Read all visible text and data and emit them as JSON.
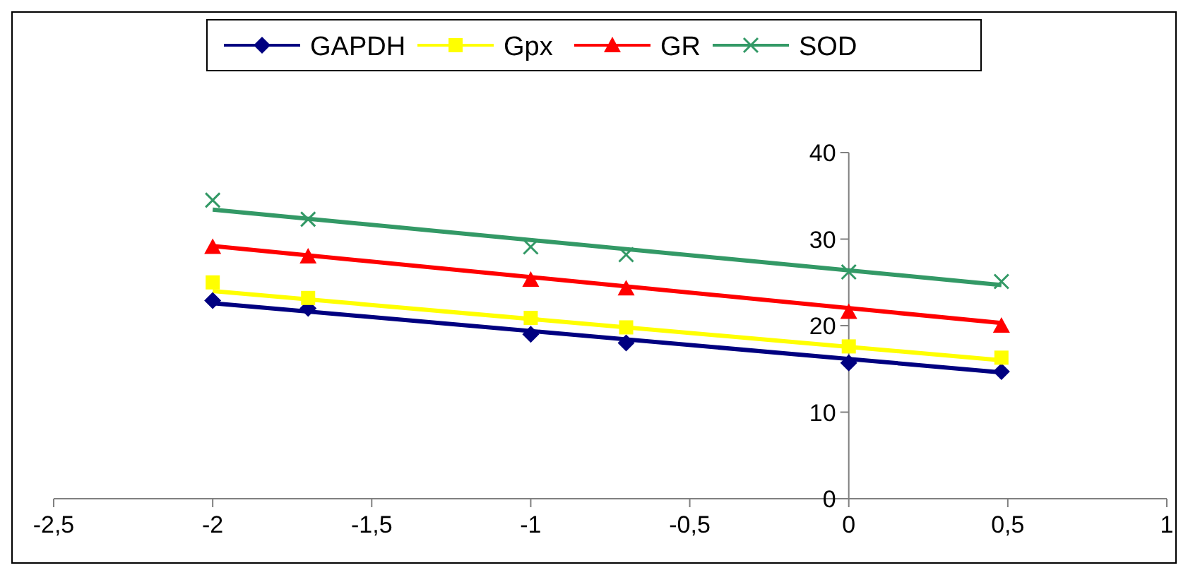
{
  "chart_data": {
    "type": "scatter",
    "xlim": [
      -2.5,
      1
    ],
    "ylim": [
      0,
      40
    ],
    "xticks": [
      {
        "value": -2.5,
        "label": "-2,5"
      },
      -2,
      {
        "value": -1.5,
        "label": "-1,5"
      },
      -1,
      {
        "value": -0.5,
        "label": "-0,5"
      },
      0,
      {
        "value": 0.5,
        "label": "0,5"
      },
      1
    ],
    "yticks": [
      0,
      10,
      20,
      30,
      40
    ],
    "grid": false,
    "legend": "top",
    "series": [
      {
        "name": "GAPDH",
        "color": "#000080",
        "marker": "diamond",
        "x": [
          -2,
          -1.7,
          -1,
          -0.7,
          0,
          0.48
        ],
        "values": [
          22.9,
          22.0,
          19.0,
          18.0,
          15.7,
          14.7
        ]
      },
      {
        "name": "Gpx",
        "color": "#ffff00",
        "marker": "square",
        "x": [
          -2,
          -1.7,
          -1,
          -0.7,
          0,
          0.48
        ],
        "values": [
          25.0,
          23.2,
          20.9,
          19.8,
          17.6,
          16.3
        ]
      },
      {
        "name": "GR",
        "color": "#ff0000",
        "marker": "triangle",
        "x": [
          -2,
          -1.7,
          -1,
          -0.7,
          0,
          0.48
        ],
        "values": [
          29.1,
          28.0,
          25.3,
          24.3,
          21.6,
          20.0
        ]
      },
      {
        "name": "SOD",
        "color": "#339966",
        "marker": "cross",
        "x": [
          -2,
          -1.7,
          -1,
          -0.7,
          0,
          0.48
        ],
        "values": [
          34.5,
          32.3,
          29.1,
          28.2,
          26.2,
          25.1
        ]
      },
      {
        "type": "line",
        "color": "#000080",
        "marker": "none",
        "x": [
          -2,
          0.48
        ],
        "values": [
          22.6,
          14.6
        ]
      },
      {
        "type": "line",
        "color": "#ffff00",
        "marker": "none",
        "x": [
          -2,
          0.48
        ],
        "values": [
          24.0,
          16.0
        ]
      },
      {
        "type": "line",
        "color": "#ff0000",
        "marker": "none",
        "x": [
          -2,
          0.48
        ],
        "values": [
          29.2,
          20.3
        ]
      },
      {
        "type": "line",
        "color": "#339966",
        "marker": "none",
        "x": [
          -2,
          0.48
        ],
        "values": [
          33.4,
          24.7
        ]
      }
    ]
  }
}
